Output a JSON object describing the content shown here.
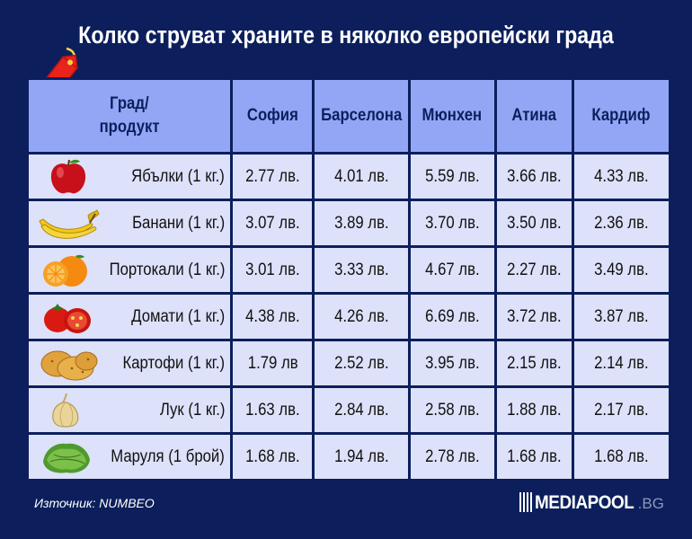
{
  "title": "Колко струват храните в няколко европейски града",
  "chart_data": {
    "type": "table",
    "corner_header": [
      "Град/",
      "продукт"
    ],
    "columns": [
      "София",
      "Барселона",
      "Мюнхен",
      "Атина",
      "Кардиф"
    ],
    "rows": [
      {
        "product": "Ябълки (1 кг.)",
        "icon": "apple-icon",
        "values": [
          "2.77 лв.",
          "4.01 лв.",
          "5.59 лв.",
          "3.66 лв.",
          "4.33 лв."
        ]
      },
      {
        "product": "Банани (1 кг.)",
        "icon": "banana-icon",
        "values": [
          "3.07 лв.",
          "3.89 лв.",
          "3.70 лв.",
          "3.50 лв.",
          "2.36 лв."
        ]
      },
      {
        "product": "Портокали (1 кг.)",
        "icon": "orange-icon",
        "values": [
          "3.01 лв.",
          "3.33 лв.",
          "4.67 лв.",
          "2.27 лв.",
          "3.49 лв."
        ]
      },
      {
        "product": "Домати (1 кг.)",
        "icon": "tomato-icon",
        "values": [
          "4.38 лв.",
          "4.26 лв.",
          "6.69 лв.",
          "3.72 лв.",
          "3.87 лв."
        ]
      },
      {
        "product": "Картофи (1 кг.)",
        "icon": "potato-icon",
        "values": [
          "1.79 лв",
          "2.52 лв.",
          "3.95 лв.",
          "2.15 лв.",
          "2.14 лв."
        ]
      },
      {
        "product": "Лук (1 кг.)",
        "icon": "onion-icon",
        "values": [
          "1.63 лв.",
          "2.84 лв.",
          "2.58 лв.",
          "1.88 лв.",
          "2.17 лв."
        ]
      },
      {
        "product": "Маруля (1 брой)",
        "icon": "lettuce-icon",
        "values": [
          "1.68 лв.",
          "1.94 лв.",
          "2.78 лв.",
          "1.68 лв.",
          "1.68 лв."
        ]
      }
    ]
  },
  "footer": {
    "source": "Източник: NUMBEO",
    "logo_main": "MEDIAPOOL",
    "logo_suffix": ".BG"
  },
  "colors": {
    "background": "#0c1f5c",
    "header_cell": "#93a6f6",
    "body_cell": "#dde1f9",
    "tag": "#e8231c"
  }
}
